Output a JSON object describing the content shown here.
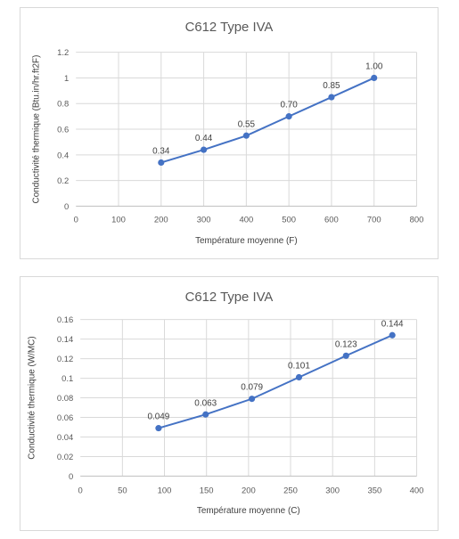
{
  "chart_data": [
    {
      "type": "line",
      "title": "C612 Type IVA",
      "xlabel": "Température moyenne (F)",
      "ylabel": "Conductivité thermique (Btu.in/hr.ft2F)",
      "xlim": [
        0,
        800
      ],
      "ylim": [
        0,
        1.2
      ],
      "x_ticks": [
        "0",
        "100",
        "200",
        "300",
        "400",
        "500",
        "600",
        "700",
        "800"
      ],
      "y_ticks": [
        "0",
        "0.2",
        "0.4",
        "0.6",
        "0.8",
        "1",
        "1.2"
      ],
      "grid": "vertical-and-horizontal",
      "legend": "none",
      "color": "#4472c4",
      "series": [
        {
          "x": [
            200,
            300,
            400,
            500,
            600,
            700
          ],
          "values": [
            0.34,
            0.44,
            0.55,
            0.7,
            0.85,
            1.0
          ],
          "labels": [
            "0.34",
            "0.44",
            "0.55",
            "0.70",
            "0.85",
            "1.00"
          ]
        }
      ]
    },
    {
      "type": "line",
      "title": "C612 Type IVA",
      "xlabel": "Température moyenne (C)",
      "ylabel": "Conductivité thermique (W/MC)",
      "xlim": [
        0,
        400
      ],
      "ylim": [
        0,
        0.16
      ],
      "x_ticks": [
        "0",
        "50",
        "100",
        "150",
        "200",
        "250",
        "300",
        "350",
        "400"
      ],
      "y_ticks": [
        "0",
        "0.02",
        "0.04",
        "0.06",
        "0.08",
        "0.1",
        "0.12",
        "0.14",
        "0.16"
      ],
      "grid": "vertical-and-horizontal",
      "legend": "none",
      "color": "#4472c4",
      "series": [
        {
          "x": [
            93,
            149,
            204,
            260,
            316,
            371
          ],
          "values": [
            0.049,
            0.063,
            0.079,
            0.101,
            0.123,
            0.144
          ],
          "labels": [
            "0.049",
            "0.063",
            "0.079",
            "0.101",
            "0.123",
            "0.144"
          ]
        }
      ]
    }
  ]
}
